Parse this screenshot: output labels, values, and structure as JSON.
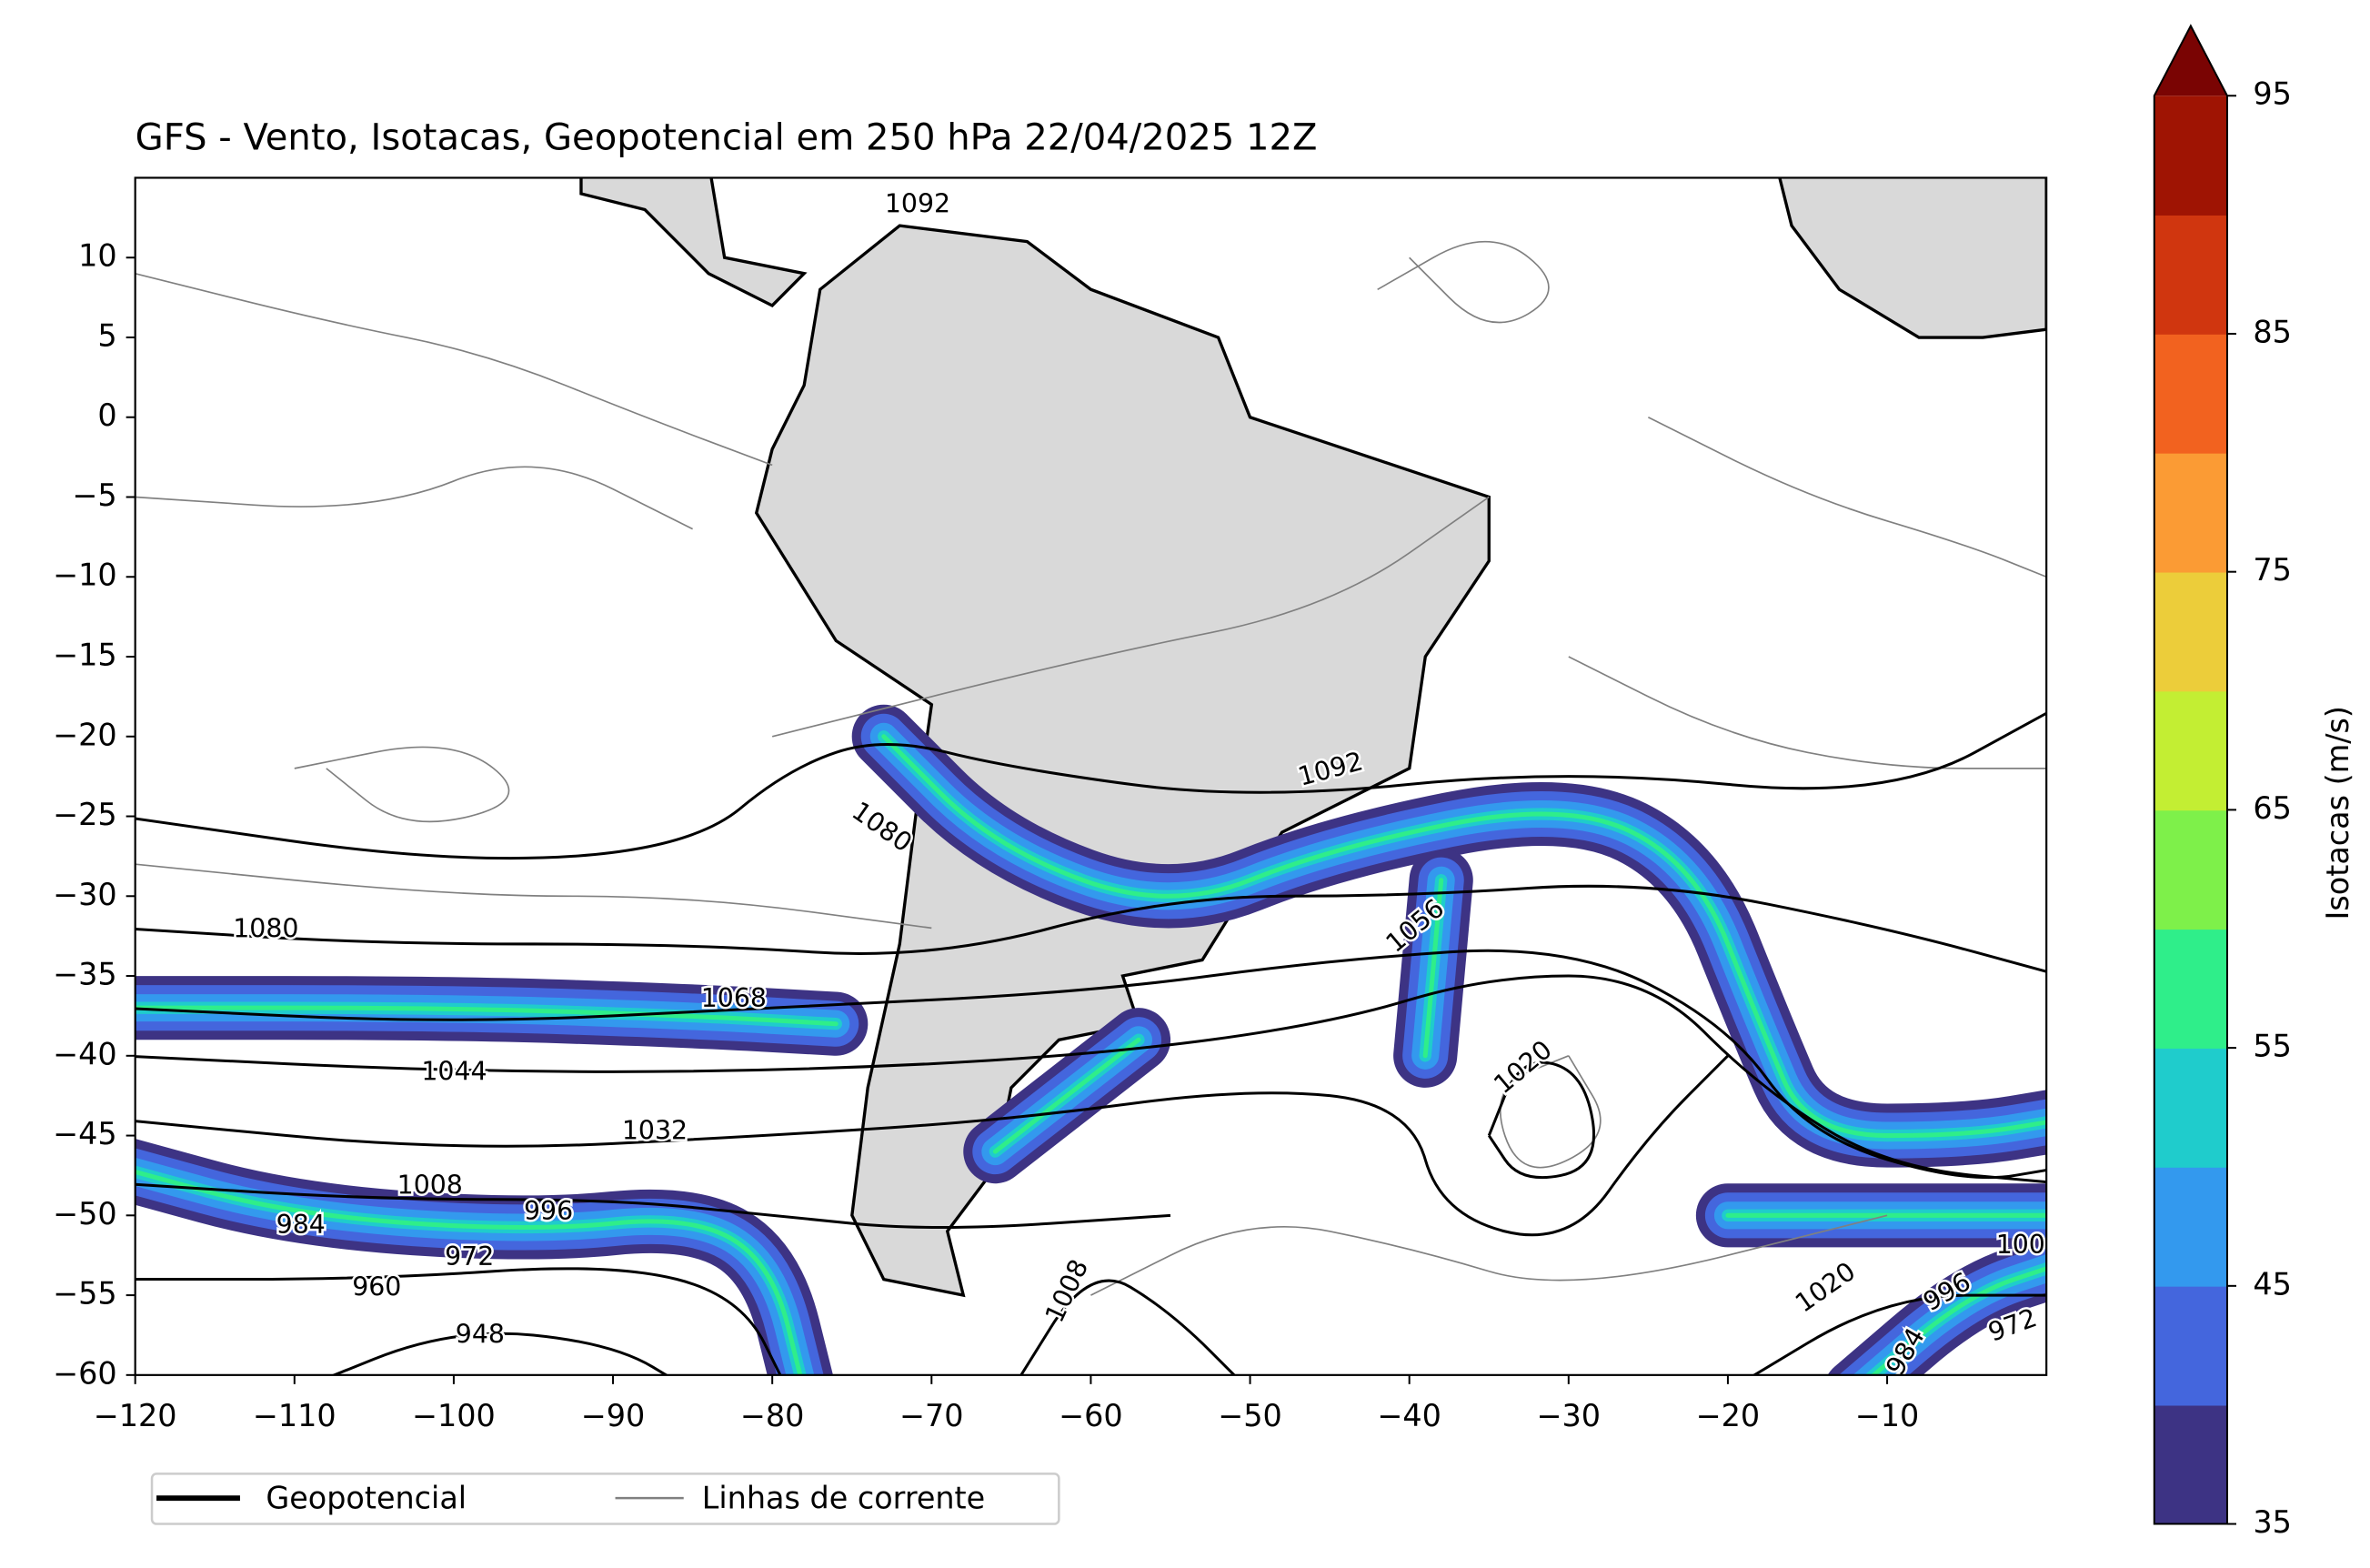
{
  "chart_data": {
    "type": "map",
    "title": "GFS - Vento, Isotacas, Geopotencial em 250 hPa 22/04/2025 12Z",
    "xlim": [
      -120,
      0
    ],
    "ylim": [
      -60,
      15
    ],
    "xticks": [
      {
        "value": -120,
        "label": "−120"
      },
      {
        "value": -110,
        "label": "−110"
      },
      {
        "value": -100,
        "label": "−100"
      },
      {
        "value": -90,
        "label": "−90"
      },
      {
        "value": -80,
        "label": "−80"
      },
      {
        "value": -70,
        "label": "−70"
      },
      {
        "value": -60,
        "label": "−60"
      },
      {
        "value": -50,
        "label": "−50"
      },
      {
        "value": -40,
        "label": "−40"
      },
      {
        "value": -30,
        "label": "−30"
      },
      {
        "value": -20,
        "label": "−20"
      },
      {
        "value": -10,
        "label": "−10"
      }
    ],
    "yticks": [
      10,
      5,
      0,
      {
        "value": -5,
        "label": "−5"
      },
      {
        "value": -10,
        "label": "−10"
      },
      {
        "value": -15,
        "label": "−15"
      },
      {
        "value": -20,
        "label": "−20"
      },
      {
        "value": -25,
        "label": "−25"
      },
      {
        "value": -30,
        "label": "−30"
      },
      {
        "value": -35,
        "label": "−35"
      },
      {
        "value": -40,
        "label": "−40"
      },
      {
        "value": -45,
        "label": "−45"
      },
      {
        "value": -50,
        "label": "−50"
      },
      {
        "value": -55,
        "label": "−55"
      },
      {
        "value": -60,
        "label": "−60"
      }
    ],
    "legend": [
      {
        "name": "Geopotencial",
        "color": "#000000"
      },
      {
        "name": "Linhas de corrente",
        "color": "#808080"
      }
    ],
    "colorbar": {
      "label": "Isotacas (m/s)",
      "levels": [
        35,
        40,
        45,
        50,
        55,
        60,
        65,
        70,
        75,
        80,
        85,
        90,
        95
      ],
      "colors": [
        "#3d3384",
        "#4466dd",
        "#3399ee",
        "#1fcccc",
        "#2fee8a",
        "#7ef04a",
        "#c3ee33",
        "#eccd3a",
        "#fb9b34",
        "#f2621f",
        "#d0360f",
        "#9f1403"
      ],
      "extend_color": "#7a0403",
      "ticks": [
        35,
        45,
        55,
        65,
        75,
        85,
        95
      ]
    },
    "contour_labels": [
      "1092",
      "1080",
      "1080",
      "1068",
      "1044",
      "1032",
      "1008",
      "996",
      "984",
      "972",
      "960",
      "948",
      "1092",
      "1056",
      "1020",
      "1008",
      "1020",
      "996",
      "984",
      "972",
      "100"
    ]
  }
}
